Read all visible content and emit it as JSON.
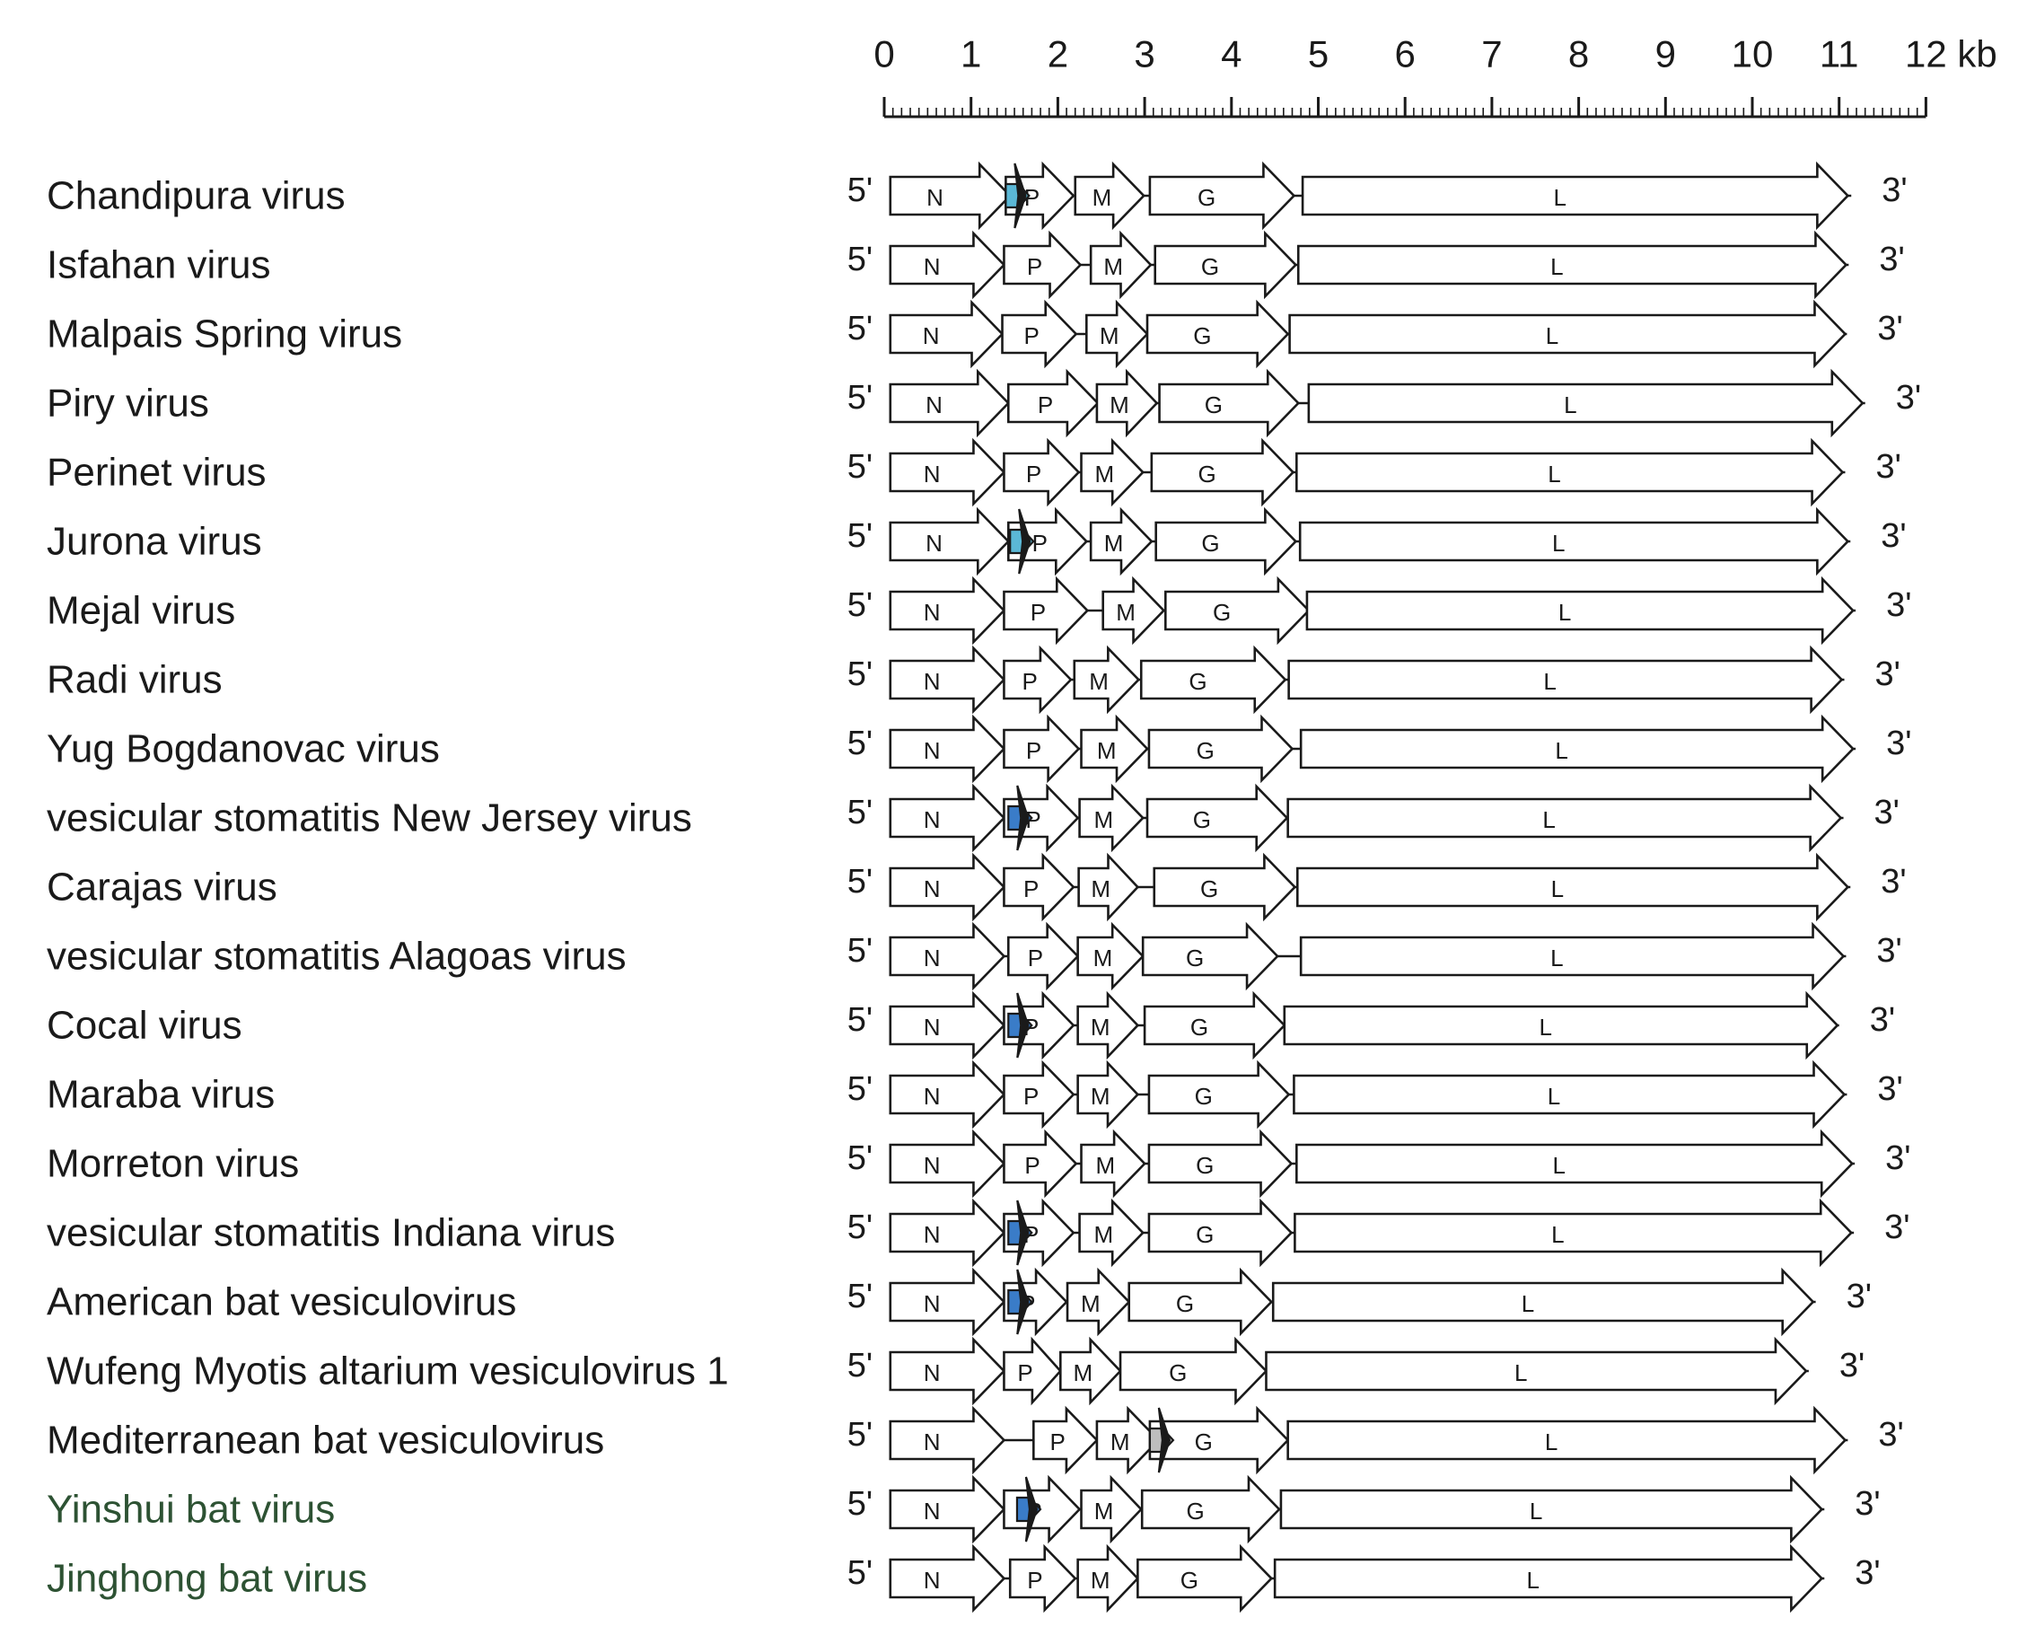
{
  "scale": {
    "ticks": [
      "0",
      "1",
      "2",
      "3",
      "4",
      "5",
      "6",
      "7",
      "8",
      "9",
      "10",
      "11",
      "12"
    ],
    "unit": "kb",
    "max_kb": 12
  },
  "end_labels": {
    "five": "5'",
    "three": "3'"
  },
  "colors": {
    "cyan_orf": "#5bb8d6",
    "blue_orf": "#3a7cc8",
    "grey_orf": "#bdbdbd",
    "green_name": "#2d5233"
  },
  "rows": [
    {
      "name": "Chandipura virus",
      "orf": "cyan",
      "orf_kb": 1.4,
      "genes": [
        [
          "N",
          0.07,
          1.45
        ],
        [
          "P",
          1.4,
          2.18
        ],
        [
          "M",
          2.2,
          2.99
        ],
        [
          "G",
          3.06,
          4.72
        ],
        [
          "L",
          4.82,
          11.1
        ]
      ],
      "end_kb": 11.14
    },
    {
      "name": "Isfahan virus",
      "genes": [
        [
          "N",
          0.07,
          1.38
        ],
        [
          "P",
          1.38,
          2.26
        ],
        [
          "M",
          2.38,
          3.07
        ],
        [
          "G",
          3.12,
          4.74
        ],
        [
          "L",
          4.77,
          11.08
        ]
      ],
      "end_kb": 11.11
    },
    {
      "name": "Malpais Spring virus",
      "genes": [
        [
          "N",
          0.07,
          1.36
        ],
        [
          "P",
          1.36,
          2.21
        ],
        [
          "M",
          2.33,
          3.03
        ],
        [
          "G",
          3.03,
          4.65
        ],
        [
          "L",
          4.67,
          11.07
        ]
      ],
      "end_kb": 11.09
    },
    {
      "name": "Piry virus",
      "genes": [
        [
          "N",
          0.07,
          1.43
        ],
        [
          "P",
          1.43,
          2.46
        ],
        [
          "M",
          2.45,
          3.14
        ],
        [
          "G",
          3.17,
          4.77
        ],
        [
          "L",
          4.89,
          11.27
        ]
      ],
      "end_kb": 11.3
    },
    {
      "name": "Perinet virus",
      "genes": [
        [
          "N",
          0.07,
          1.38
        ],
        [
          "P",
          1.38,
          2.24
        ],
        [
          "M",
          2.27,
          2.98
        ],
        [
          "G",
          3.08,
          4.71
        ],
        [
          "L",
          4.75,
          11.04
        ]
      ],
      "end_kb": 11.07
    },
    {
      "name": "Jurona virus",
      "orf": "cyan",
      "orf_kb": 1.45,
      "genes": [
        [
          "N",
          0.07,
          1.43
        ],
        [
          "P",
          1.43,
          2.33
        ],
        [
          "M",
          2.38,
          3.08
        ],
        [
          "G",
          3.13,
          4.74
        ],
        [
          "L",
          4.79,
          11.1
        ]
      ],
      "end_kb": 11.13
    },
    {
      "name": "Mejal virus",
      "genes": [
        [
          "N",
          0.07,
          1.38
        ],
        [
          "P",
          1.38,
          2.34
        ],
        [
          "M",
          2.52,
          3.22
        ],
        [
          "G",
          3.24,
          4.89
        ],
        [
          "L",
          4.87,
          11.16
        ]
      ],
      "end_kb": 11.19
    },
    {
      "name": "Radi virus",
      "genes": [
        [
          "N",
          0.07,
          1.38
        ],
        [
          "P",
          1.38,
          2.15
        ],
        [
          "M",
          2.19,
          2.93
        ],
        [
          "G",
          2.96,
          4.62
        ],
        [
          "L",
          4.66,
          11.03
        ]
      ],
      "end_kb": 11.06
    },
    {
      "name": "Yug Bogdanovac virus",
      "genes": [
        [
          "N",
          0.07,
          1.38
        ],
        [
          "P",
          1.38,
          2.24
        ],
        [
          "M",
          2.27,
          3.03
        ],
        [
          "G",
          3.05,
          4.7
        ],
        [
          "L",
          4.8,
          11.16
        ]
      ],
      "end_kb": 11.19
    },
    {
      "name": "vesicular stomatitis New Jersey virus",
      "orf": "blue",
      "orf_kb": 1.43,
      "genes": [
        [
          "N",
          0.07,
          1.38
        ],
        [
          "P",
          1.38,
          2.23
        ],
        [
          "M",
          2.25,
          2.98
        ],
        [
          "G",
          3.03,
          4.64
        ],
        [
          "L",
          4.65,
          11.02
        ]
      ],
      "end_kb": 11.05
    },
    {
      "name": "Carajas virus",
      "genes": [
        [
          "N",
          0.07,
          1.38
        ],
        [
          "P",
          1.38,
          2.18
        ],
        [
          "M",
          2.24,
          2.92
        ],
        [
          "G",
          3.11,
          4.73
        ],
        [
          "L",
          4.76,
          11.1
        ]
      ],
      "end_kb": 11.13
    },
    {
      "name": "vesicular stomatitis Alagoas virus",
      "genes": [
        [
          "N",
          0.07,
          1.38
        ],
        [
          "P",
          1.43,
          2.23
        ],
        [
          "M",
          2.23,
          2.98
        ],
        [
          "G",
          2.98,
          4.53
        ],
        [
          "L",
          4.8,
          11.05
        ]
      ],
      "end_kb": 11.08
    },
    {
      "name": "Cocal virus",
      "orf": "blue",
      "orf_kb": 1.43,
      "genes": [
        [
          "N",
          0.07,
          1.38
        ],
        [
          "P",
          1.38,
          2.18
        ],
        [
          "M",
          2.23,
          2.92
        ],
        [
          "G",
          3.0,
          4.61
        ],
        [
          "L",
          4.61,
          10.98
        ]
      ],
      "end_kb": 11.0
    },
    {
      "name": "Maraba virus",
      "genes": [
        [
          "N",
          0.07,
          1.38
        ],
        [
          "P",
          1.38,
          2.18
        ],
        [
          "M",
          2.23,
          2.92
        ],
        [
          "G",
          3.05,
          4.66
        ],
        [
          "L",
          4.72,
          11.06
        ]
      ],
      "end_kb": 11.09
    },
    {
      "name": "Morreton virus",
      "genes": [
        [
          "N",
          0.07,
          1.38
        ],
        [
          "P",
          1.38,
          2.21
        ],
        [
          "M",
          2.27,
          3.0
        ],
        [
          "G",
          3.05,
          4.69
        ],
        [
          "L",
          4.75,
          11.15
        ]
      ],
      "end_kb": 11.18
    },
    {
      "name": "vesicular stomatitis Indiana virus",
      "orf": "blue",
      "orf_kb": 1.43,
      "genes": [
        [
          "N",
          0.07,
          1.38
        ],
        [
          "P",
          1.38,
          2.18
        ],
        [
          "M",
          2.25,
          2.98
        ],
        [
          "G",
          3.05,
          4.69
        ],
        [
          "L",
          4.73,
          11.14
        ]
      ],
      "end_kb": 11.17
    },
    {
      "name": "American bat vesiculovirus",
      "orf": "blue",
      "orf_kb": 1.43,
      "genes": [
        [
          "N",
          0.07,
          1.38
        ],
        [
          "P",
          1.38,
          2.1
        ],
        [
          "M",
          2.11,
          2.82
        ],
        [
          "G",
          2.82,
          4.46
        ],
        [
          "L",
          4.48,
          10.7
        ]
      ],
      "end_kb": 10.73
    },
    {
      "name": "Wufeng Myotis altarium vesiculovirus 1",
      "genes": [
        [
          "N",
          0.07,
          1.38
        ],
        [
          "P",
          1.38,
          2.03
        ],
        [
          "M",
          2.03,
          2.72
        ],
        [
          "G",
          2.72,
          4.4
        ],
        [
          "L",
          4.4,
          10.62
        ]
      ],
      "end_kb": 10.65
    },
    {
      "name": "Mediterranean bat vesiculovirus",
      "orf": "grey",
      "orf_kb": 3.06,
      "gap": [
        1.38,
        1.72
      ],
      "genes": [
        [
          "N",
          0.07,
          1.38
        ],
        [
          "P",
          1.72,
          2.45
        ],
        [
          "M",
          2.45,
          3.16
        ],
        [
          "G",
          3.06,
          4.65
        ],
        [
          "L",
          4.65,
          11.07
        ]
      ],
      "end_kb": 11.1
    },
    {
      "name": "Yinshui bat virus",
      "orf": "blue",
      "orf_kb": 1.53,
      "name_color": "green",
      "genes": [
        [
          "N",
          0.07,
          1.38
        ],
        [
          "P",
          1.38,
          2.25
        ],
        [
          "M",
          2.27,
          2.96
        ],
        [
          "G",
          2.97,
          4.55
        ],
        [
          "L",
          4.57,
          10.8
        ]
      ],
      "end_kb": 10.83
    },
    {
      "name": "Jinghong bat virus",
      "name_color": "green",
      "genes": [
        [
          "N",
          0.07,
          1.38
        ],
        [
          "P",
          1.45,
          2.2
        ],
        [
          "M",
          2.23,
          2.92
        ],
        [
          "G",
          2.92,
          4.46
        ],
        [
          "L",
          4.5,
          10.8
        ]
      ],
      "end_kb": 10.83
    }
  ]
}
